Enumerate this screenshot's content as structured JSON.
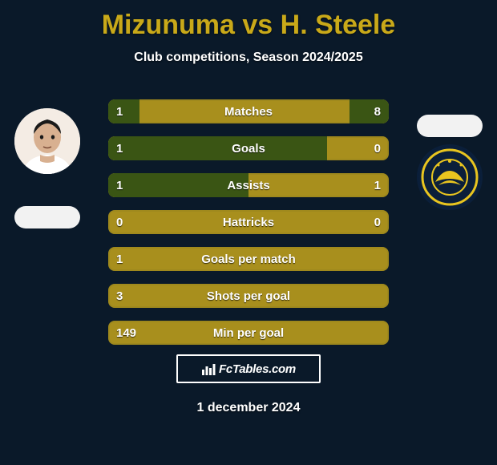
{
  "title": "Mizunuma vs H. Steele",
  "subtitle": "Club competitions, Season 2024/2025",
  "date": "1 december 2024",
  "brand": "FcTables.com",
  "colors": {
    "background": "#0a1929",
    "title": "#c9a919",
    "bar_bg": "#a88f1d",
    "bar_fill": "#3a5514",
    "text": "#ffffff"
  },
  "bars": [
    {
      "label": "Matches",
      "left": "1",
      "right": "8",
      "left_pct": 11,
      "right_pct": 14
    },
    {
      "label": "Goals",
      "left": "1",
      "right": "0",
      "left_pct": 78,
      "right_pct": 0
    },
    {
      "label": "Assists",
      "left": "1",
      "right": "1",
      "left_pct": 50,
      "right_pct": 0
    },
    {
      "label": "Hattricks",
      "left": "0",
      "right": "0",
      "left_pct": 0,
      "right_pct": 0
    },
    {
      "label": "Goals per match",
      "left": "1",
      "right": "",
      "left_pct": 0,
      "right_pct": 0
    },
    {
      "label": "Shots per goal",
      "left": "3",
      "right": "",
      "left_pct": 0,
      "right_pct": 0
    },
    {
      "label": "Min per goal",
      "left": "149",
      "right": "",
      "left_pct": 0,
      "right_pct": 0
    }
  ]
}
